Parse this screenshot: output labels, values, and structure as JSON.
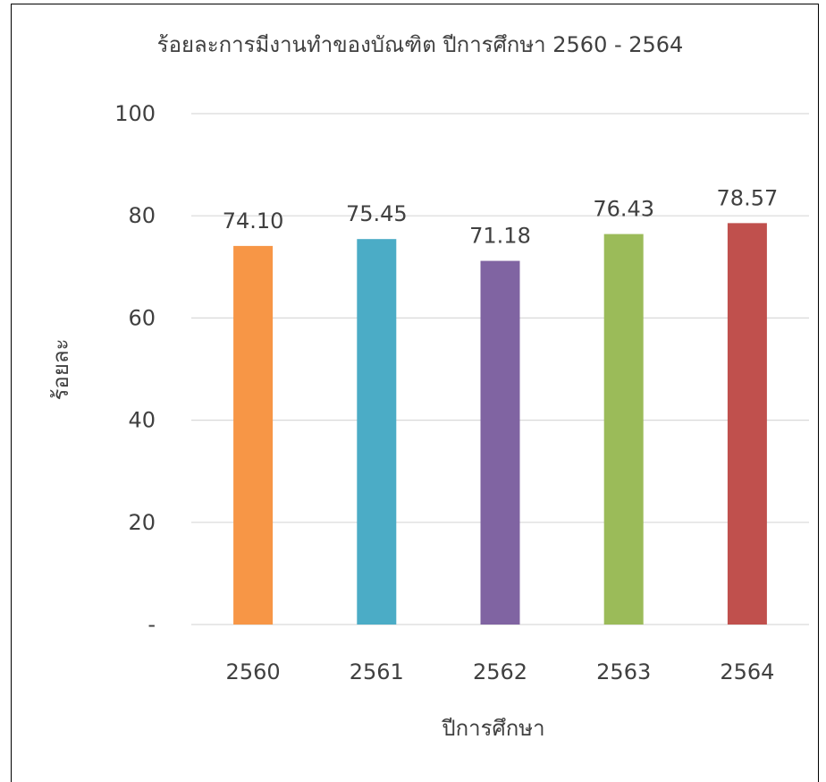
{
  "chart_data": {
    "type": "bar",
    "title": "ร้อยละการมีงานทำของบัณฑิต ปีการศึกษา 2560 - 2564",
    "xlabel": "ปีการศึกษา",
    "ylabel": "ร้อยละ",
    "categories": [
      "2560",
      "2561",
      "2562",
      "2563",
      "2564"
    ],
    "values": [
      74.1,
      75.45,
      71.18,
      76.43,
      78.57
    ],
    "data_labels": [
      "74.10",
      "75.45",
      "71.18",
      "76.43",
      "78.57"
    ],
    "colors": [
      "#F79646",
      "#4BACC6",
      "#8064A2",
      "#9BBB59",
      "#C0504D"
    ],
    "ylim": [
      0,
      100
    ],
    "yticks": [
      0,
      20,
      40,
      60,
      80,
      100
    ],
    "ytick_labels": [
      "-",
      "20",
      "40",
      "60",
      "80",
      "100"
    ],
    "grid": true,
    "legend": "none"
  }
}
